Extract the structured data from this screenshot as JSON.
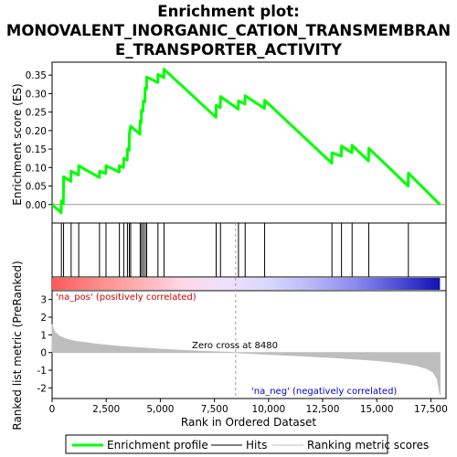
{
  "title_lines": [
    "Enrichment plot:",
    "MONOVALENT_INORGANIC_CATION_TRANSMEMBRAN",
    "E_TRANSPORTER_ACTIVITY"
  ],
  "colors": {
    "es_line": "#00ff00",
    "hit": "#000000",
    "metric_fill": "#bebebe",
    "zero_cross_line": "#9a9a9a",
    "pos_label": "#cc0000",
    "neg_label": "#0000cc"
  },
  "chart_data": [
    {
      "type": "line",
      "name": "enrichment-profile",
      "ylabel": "Enrichment score (ES)",
      "xlim": [
        0,
        18200
      ],
      "ylim": [
        -0.05,
        0.385
      ],
      "yticks": [
        0.0,
        0.05,
        0.1,
        0.15,
        0.2,
        0.25,
        0.3,
        0.35
      ],
      "ytick_labels": [
        "0.00",
        "0.05",
        "0.10",
        "0.15",
        "0.20",
        "0.25",
        "0.30",
        "0.35"
      ],
      "x": [
        0,
        420,
        430,
        520,
        530,
        870,
        880,
        1220,
        1230,
        2180,
        2190,
        2480,
        2490,
        3100,
        3110,
        3300,
        3310,
        3470,
        3480,
        3560,
        3570,
        3620,
        3630,
        4060,
        4070,
        4120,
        4130,
        4200,
        4210,
        4290,
        4300,
        4360,
        4370,
        4880,
        4890,
        5160,
        5170,
        7570,
        7580,
        7770,
        7780,
        8600,
        8610,
        8910,
        8920,
        9810,
        9820,
        12920,
        12930,
        13360,
        13370,
        13850,
        13860,
        14620,
        14630,
        16450,
        16460,
        17920
      ],
      "y": [
        0.0,
        -0.022,
        0.01,
        0.002,
        0.075,
        0.063,
        0.09,
        0.08,
        0.105,
        0.073,
        0.09,
        0.084,
        0.105,
        0.088,
        0.105,
        0.1,
        0.125,
        0.12,
        0.15,
        0.147,
        0.19,
        0.21,
        0.212,
        0.19,
        0.226,
        0.222,
        0.255,
        0.252,
        0.28,
        0.278,
        0.315,
        0.312,
        0.345,
        0.33,
        0.352,
        0.343,
        0.366,
        0.236,
        0.268,
        0.262,
        0.292,
        0.258,
        0.28,
        0.272,
        0.294,
        0.26,
        0.282,
        0.112,
        0.14,
        0.131,
        0.158,
        0.14,
        0.16,
        0.118,
        0.152,
        0.05,
        0.085,
        0.0
      ]
    },
    {
      "type": "scatter",
      "name": "hits",
      "x": [
        430,
        530,
        880,
        1230,
        2190,
        2490,
        3110,
        3310,
        3480,
        3570,
        3630,
        4070,
        4130,
        4210,
        4300,
        4370,
        4890,
        5170,
        7580,
        7780,
        8610,
        8920,
        9820,
        12930,
        13370,
        13860,
        14630,
        16460
      ]
    },
    {
      "type": "heatmap",
      "name": "ranking-color-bar",
      "x": [
        0,
        1000,
        2000,
        3000,
        4000,
        5000,
        6000,
        7000,
        8000,
        9000,
        10000,
        11000,
        12000,
        13000,
        14000,
        15000,
        16000,
        17000,
        17920
      ],
      "colors": [
        "#ff5a5a",
        "#ff8888",
        "#ffb0b0",
        "#ffd6e6",
        "#f0e0ff",
        "#d8d8ff",
        "#b8b8f8",
        "#8c8cf0",
        "#5050d8",
        "#1010b0"
      ]
    },
    {
      "type": "area",
      "name": "ranking-metric-scores",
      "ylabel": "Ranked list metric (PreRanked)",
      "xlabel": "Rank in Ordered Dataset",
      "xlim": [
        0,
        18200
      ],
      "ylim": [
        -2.6,
        3.5
      ],
      "yticks": [
        -2,
        -1,
        0,
        1,
        2,
        3
      ],
      "ytick_labels": [
        "-2",
        "-1",
        "0",
        "1",
        "2",
        "3"
      ],
      "xticks": [
        0,
        2500,
        5000,
        7500,
        10000,
        12500,
        15000,
        17500
      ],
      "xtick_labels": [
        "0",
        "2,500",
        "5,000",
        "7,500",
        "10,000",
        "12,500",
        "15,000",
        "17,500"
      ],
      "x": [
        0,
        100,
        300,
        600,
        1000,
        2000,
        3000,
        4000,
        5000,
        6000,
        7000,
        8000,
        8480,
        9000,
        10000,
        11000,
        12000,
        13000,
        14000,
        15000,
        16000,
        16800,
        17300,
        17600,
        17800,
        17920
      ],
      "values": [
        1.6,
        1.2,
        0.95,
        0.78,
        0.65,
        0.48,
        0.36,
        0.27,
        0.19,
        0.12,
        0.06,
        0.02,
        0.0,
        -0.04,
        -0.1,
        -0.16,
        -0.22,
        -0.29,
        -0.36,
        -0.45,
        -0.58,
        -0.72,
        -0.9,
        -1.1,
        -1.5,
        -2.4
      ],
      "annotations": {
        "pos": "'na_pos' (positively correlated)",
        "neg": "'na_neg' (negatively correlated)",
        "zero_cross": "Zero cross at 8480",
        "zero_cross_x": 8480
      }
    }
  ],
  "legend": {
    "items": [
      {
        "label": "Enrichment profile",
        "color": "#00ff00",
        "kind": "thick-line"
      },
      {
        "label": "Hits",
        "color": "#000000",
        "kind": "thin-line"
      },
      {
        "label": "Ranking metric scores",
        "color": "#bebebe",
        "kind": "thin-line"
      }
    ]
  }
}
